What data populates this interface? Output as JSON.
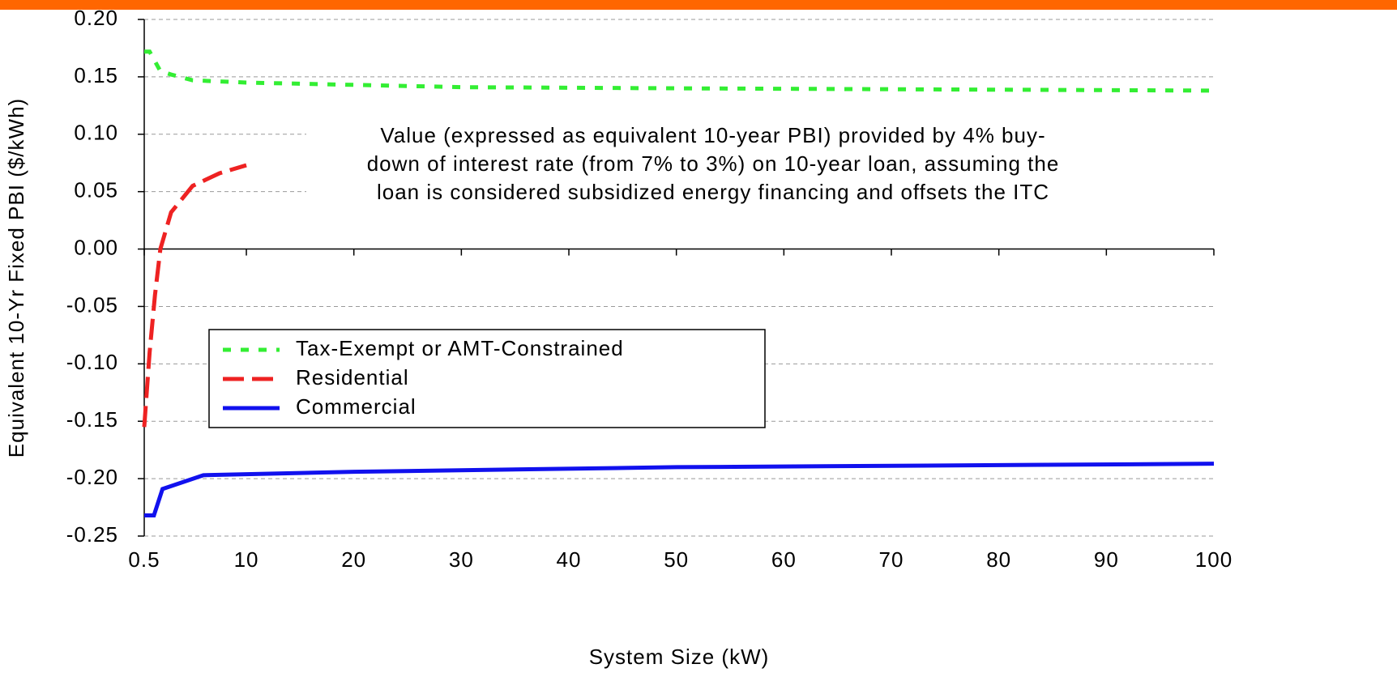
{
  "chart_data": {
    "type": "line",
    "x_label": "System Size (kW)",
    "y_label": "Equivalent 10-Yr Fixed PBI ($/kWh)",
    "annotation": [
      "Value (expressed as equivalent 10-year PBI) provided by 4% buy-",
      "down of interest rate (from 7% to 3%) on 10-year loan, assuming the",
      "loan is considered subsidized energy financing and offsets the ITC"
    ],
    "xlim": [
      0.5,
      100
    ],
    "xticks": [
      0.5,
      10,
      20,
      30,
      40,
      50,
      60,
      70,
      80,
      90,
      100
    ],
    "ylim": [
      -0.25,
      0.2
    ],
    "yticks": [
      {
        "value": -0.25,
        "label": "-0.25"
      },
      {
        "value": -0.2,
        "label": "-0.20"
      },
      -0.15,
      {
        "value": -0.1,
        "label": "-0.10"
      },
      -0.05,
      {
        "value": 0,
        "label": "0.00"
      },
      0.05,
      {
        "value": 0.1,
        "label": "0.10"
      },
      0.15,
      {
        "value": 0.2,
        "label": "0.20"
      }
    ],
    "grid": true,
    "series": [
      {
        "name": "Tax-Exempt or AMT-Constrained",
        "color": "#33ee33",
        "dash": "10,12",
        "x": [
          0.5,
          1,
          2,
          3,
          5,
          10,
          20,
          30,
          50,
          75,
          100
        ],
        "values": [
          0.172,
          0.172,
          0.155,
          0.152,
          0.147,
          0.145,
          0.143,
          0.141,
          0.14,
          0.139,
          0.138
        ]
      },
      {
        "name": "Residential",
        "color": "#ee2222",
        "dash": "26,10",
        "x": [
          0.5,
          1,
          1.5,
          2,
          3,
          5,
          7.5,
          10
        ],
        "values": [
          -0.155,
          -0.09,
          -0.04,
          0.0,
          0.032,
          0.055,
          0.066,
          0.073
        ]
      },
      {
        "name": "Commercial",
        "color": "#1111ee",
        "dash": "",
        "x": [
          0.5,
          1.4,
          2.2,
          6,
          20,
          50,
          100
        ],
        "values": [
          -0.232,
          -0.232,
          -0.209,
          -0.197,
          -0.194,
          -0.19,
          -0.187
        ]
      }
    ]
  }
}
